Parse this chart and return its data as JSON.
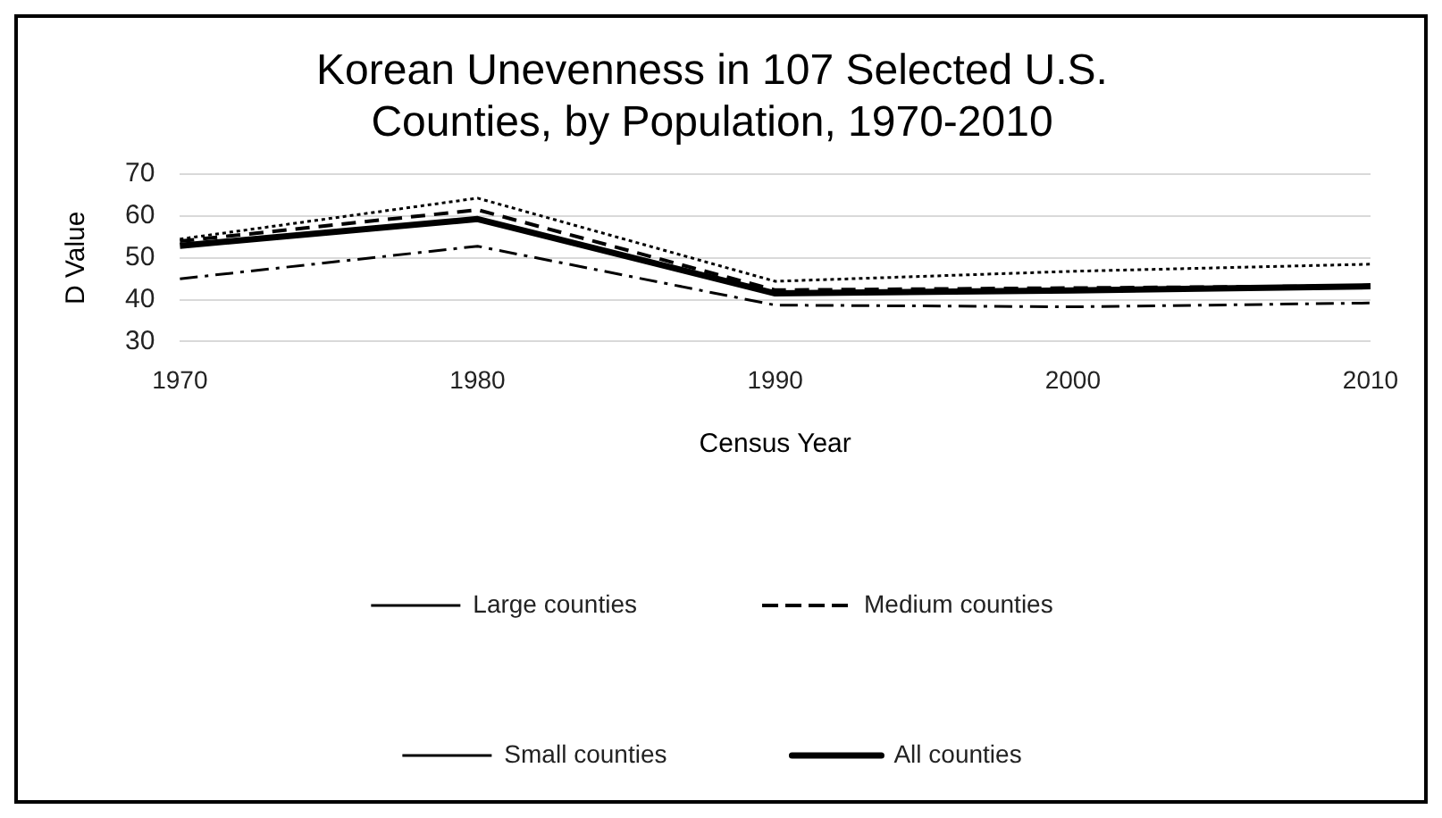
{
  "chart_data": {
    "type": "line",
    "title": "Korean Unevenness in 107 Selected U.S. Counties, by Population, 1970-2010",
    "xlabel": "Census Year",
    "ylabel": "D Value",
    "categories": [
      "1970",
      "1980",
      "1990",
      "2000",
      "2010"
    ],
    "series": [
      {
        "name": "Large counties",
        "color": "#000000",
        "line_style": "dotted",
        "values": [
          54.5,
          64.3,
          44.4,
          46.8,
          48.5
        ]
      },
      {
        "name": "Medium counties",
        "color": "#000000",
        "line_style": "dashed",
        "values": [
          54,
          61.5,
          42.3,
          42.8,
          43.3
        ]
      },
      {
        "name": "Small counties",
        "color": "#000000",
        "line_style": "dashdot",
        "values": [
          45,
          52.8,
          38.7,
          38.3,
          39.2
        ]
      },
      {
        "name": "All counties",
        "color": "#000000",
        "line_style": "solid",
        "values": [
          52.9,
          59.3,
          41.5,
          42.2,
          43.2
        ]
      }
    ],
    "ylim": [
      30,
      70
    ],
    "yticks": [
      30,
      40,
      50,
      60,
      70
    ],
    "grid": "y",
    "legend": "bottom",
    "marker": "none"
  }
}
